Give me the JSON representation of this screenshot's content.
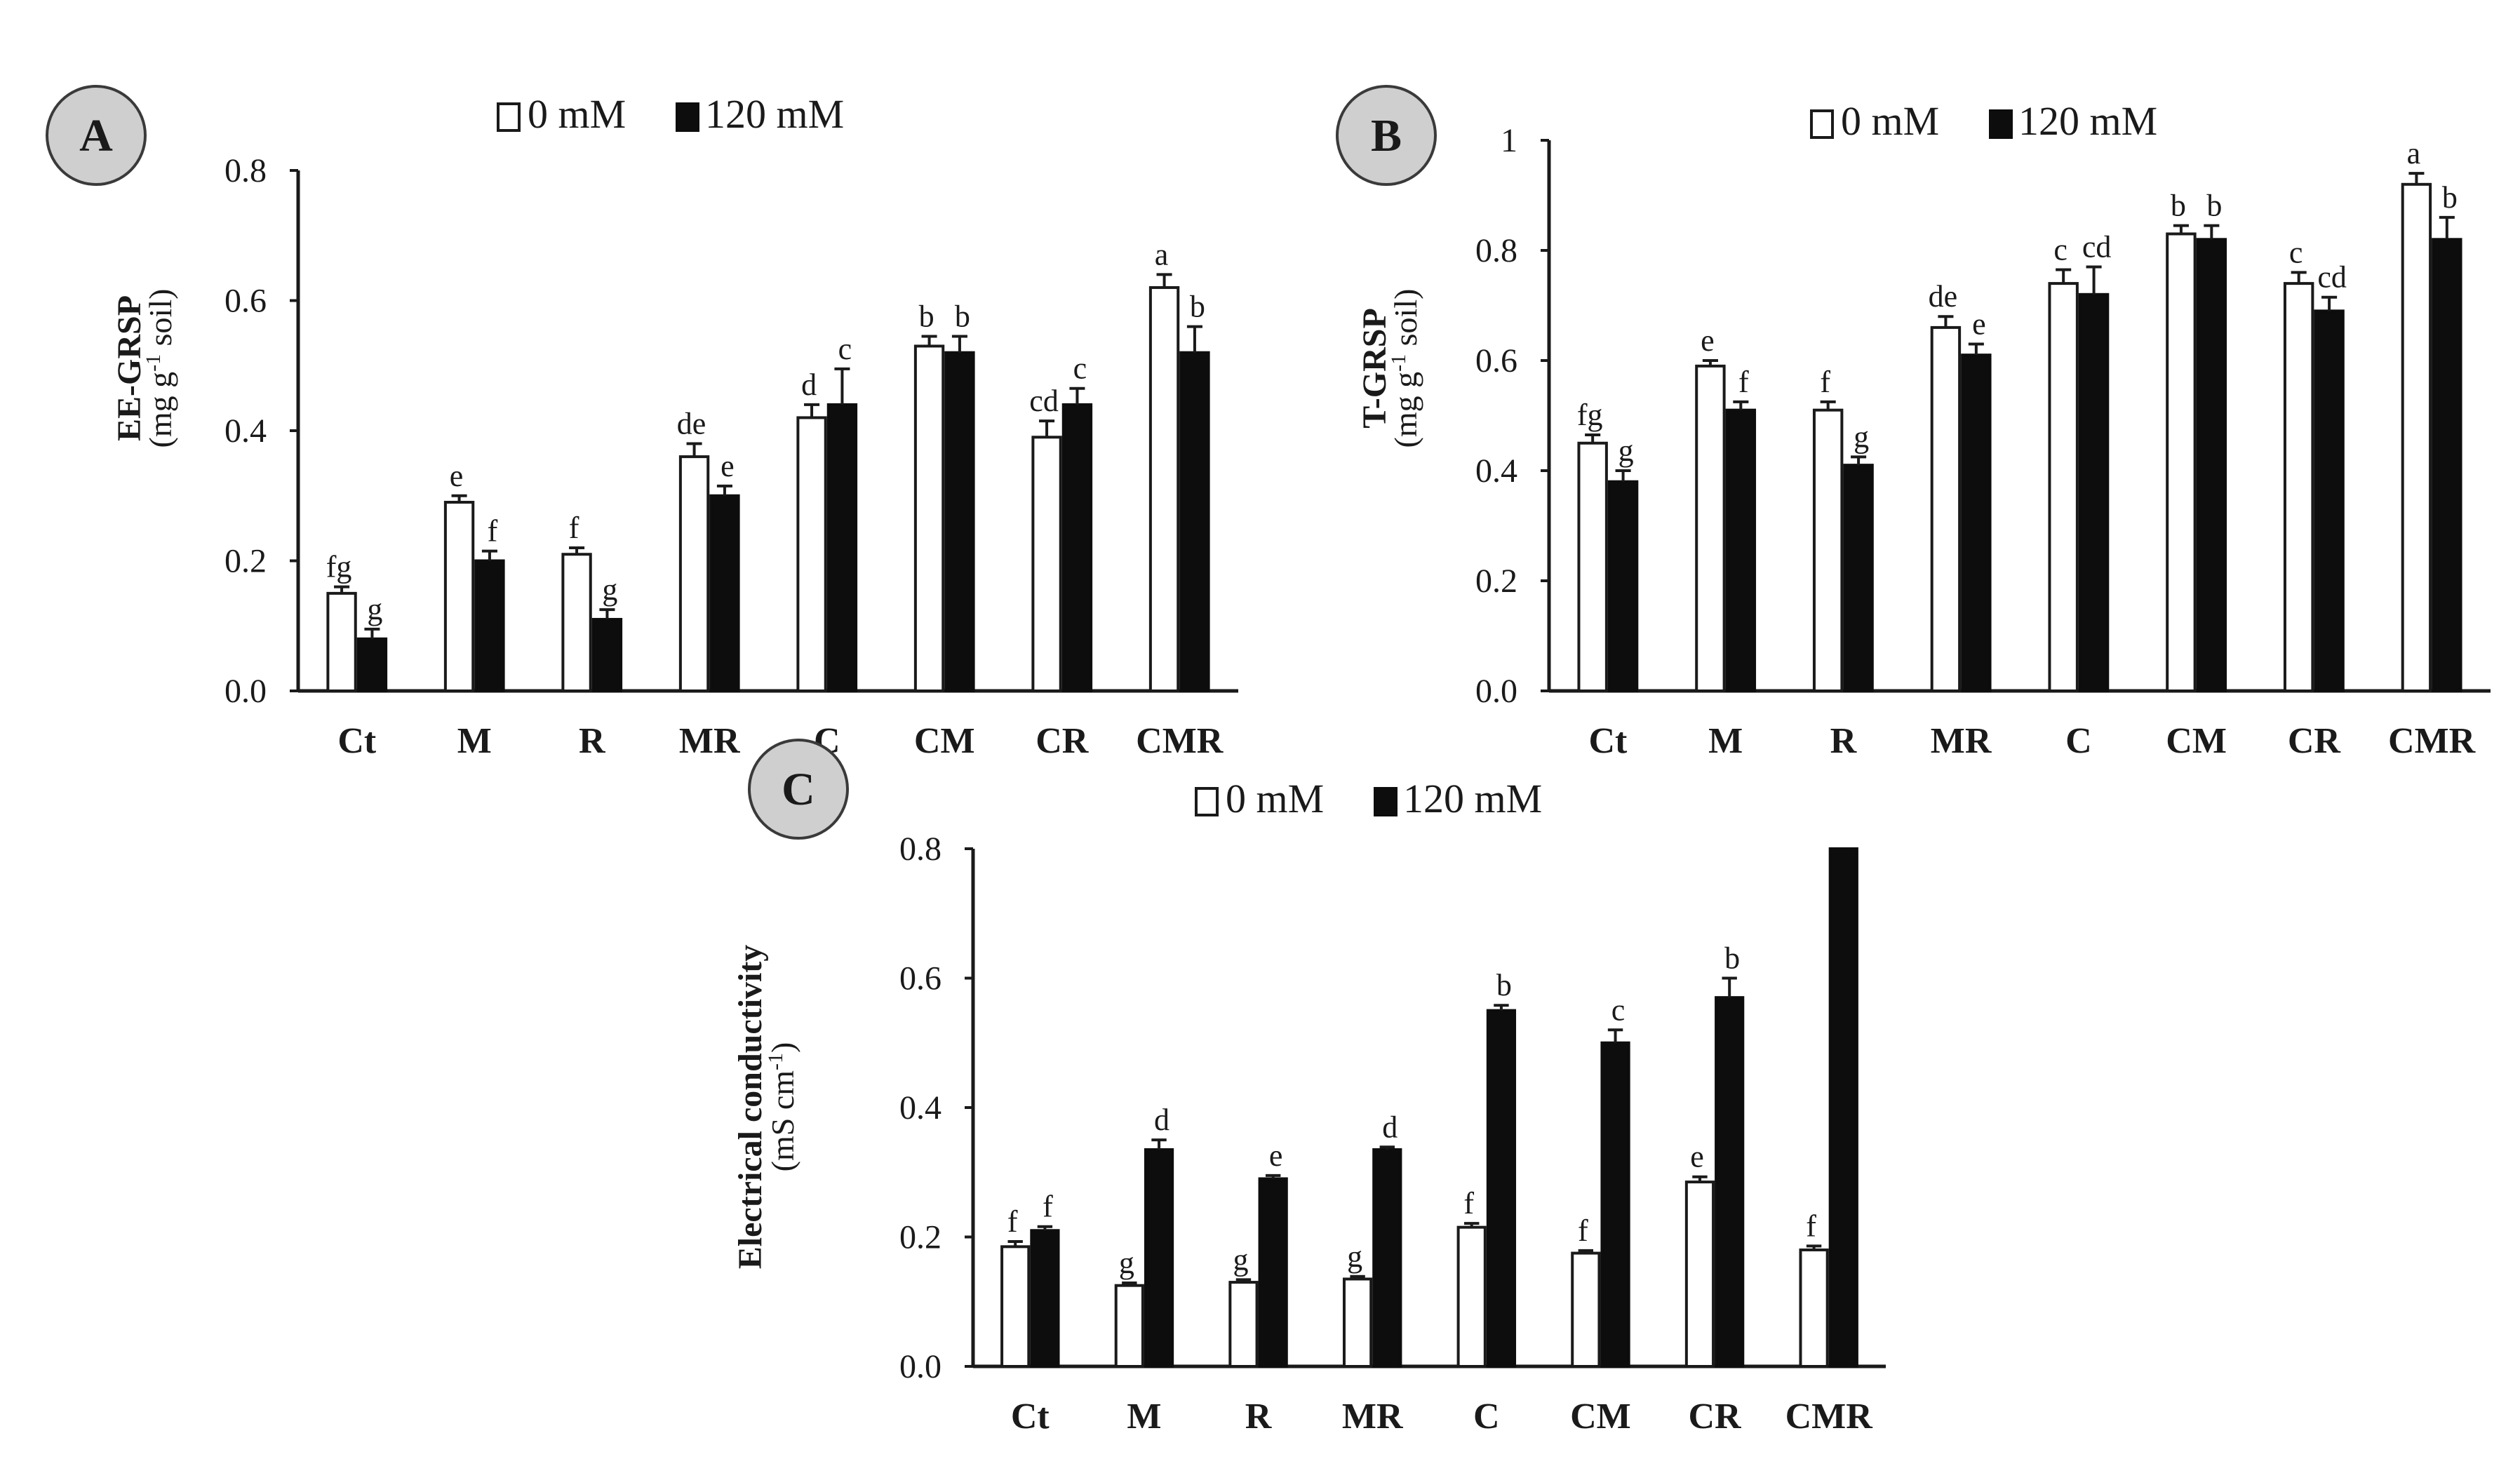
{
  "legend": {
    "series0": "0 mM",
    "series1": "120 mM"
  },
  "colors": {
    "series0_fill": "#ffffff",
    "series1_fill": "#0d0d0d",
    "badge": "#cfcfcf"
  },
  "chart_data": [
    {
      "id": "A",
      "type": "bar",
      "panel_label": "A",
      "ylabel_main": "EE-GRSP",
      "ylabel_unit": "(mg g-1 soil)",
      "ylabel_unit_parts": [
        "(mg g",
        "-1",
        " soil)"
      ],
      "ylim": [
        0,
        0.8
      ],
      "yticks": [
        "0.0",
        "0.2",
        "0.4",
        "0.6",
        "0.8"
      ],
      "categories": [
        "Ct",
        "M",
        "R",
        "MR",
        "C",
        "CM",
        "CR",
        "CMR"
      ],
      "series": [
        {
          "name": "0 mM",
          "values": [
            0.15,
            0.29,
            0.21,
            0.36,
            0.42,
            0.53,
            0.39,
            0.62
          ],
          "errors": [
            0.01,
            0.01,
            0.01,
            0.02,
            0.02,
            0.015,
            0.025,
            0.02
          ],
          "letters": [
            "fg",
            "e",
            "f",
            "de",
            "d",
            "b",
            "cd",
            "a"
          ]
        },
        {
          "name": "120 mM",
          "values": [
            0.08,
            0.2,
            0.11,
            0.3,
            0.44,
            0.52,
            0.44,
            0.52
          ],
          "errors": [
            0.015,
            0.015,
            0.015,
            0.015,
            0.055,
            0.025,
            0.025,
            0.04
          ],
          "letters": [
            "g",
            "f",
            "g",
            "e",
            "c",
            "b",
            "c",
            "b"
          ]
        }
      ]
    },
    {
      "id": "B",
      "type": "bar",
      "panel_label": "B",
      "ylabel_main": "T-GRSP",
      "ylabel_unit": "(mg g-1 soil)",
      "ylabel_unit_parts": [
        "(mg g",
        "-1",
        " soil)"
      ],
      "ylim": [
        0,
        1.0
      ],
      "yticks": [
        "0.0",
        "0.2",
        "0.4",
        "0.6",
        "0.8",
        "1"
      ],
      "categories": [
        "Ct",
        "M",
        "R",
        "MR",
        "C",
        "CM",
        "CR",
        "CMR"
      ],
      "series": [
        {
          "name": "0 mM",
          "values": [
            0.45,
            0.59,
            0.51,
            0.66,
            0.74,
            0.83,
            0.74,
            0.92
          ],
          "errors": [
            0.015,
            0.01,
            0.015,
            0.02,
            0.025,
            0.015,
            0.02,
            0.02
          ],
          "letters": [
            "fg",
            "e",
            "f",
            "de",
            "c",
            "b",
            "c",
            "a"
          ]
        },
        {
          "name": "120 mM",
          "values": [
            0.38,
            0.51,
            0.41,
            0.61,
            0.72,
            0.82,
            0.69,
            0.82
          ],
          "errors": [
            0.02,
            0.015,
            0.015,
            0.02,
            0.05,
            0.025,
            0.025,
            0.04
          ],
          "letters": [
            "g",
            "f",
            "g",
            "e",
            "cd",
            "b",
            "cd",
            "b"
          ]
        }
      ]
    },
    {
      "id": "C",
      "type": "bar",
      "panel_label": "C",
      "ylabel_main": "Electrical conductivity",
      "ylabel_unit": "(mS cm-1)",
      "ylabel_unit_parts": [
        "(mS cm",
        "-1",
        ")"
      ],
      "ylim": [
        0,
        0.8
      ],
      "yticks": [
        "0.0",
        "0.2",
        "0.4",
        "0.6",
        "0.8"
      ],
      "categories": [
        "Ct",
        "M",
        "R",
        "MR",
        "C",
        "CM",
        "CR",
        "CMR"
      ],
      "series": [
        {
          "name": "0 mM",
          "values": [
            0.185,
            0.125,
            0.13,
            0.135,
            0.215,
            0.175,
            0.285,
            0.18
          ],
          "errors": [
            0.008,
            0.004,
            0.004,
            0.004,
            0.006,
            0.004,
            0.008,
            0.006
          ],
          "letters": [
            "f",
            "g",
            "g",
            "g",
            "f",
            "f",
            "e",
            "f"
          ]
        },
        {
          "name": "120 mM",
          "values": [
            0.21,
            0.335,
            0.29,
            0.335,
            0.55,
            0.5,
            0.57,
            0.8
          ],
          "errors": [
            0.006,
            0.015,
            0.005,
            0.004,
            0.008,
            0.02,
            0.03,
            0.0
          ],
          "letters": [
            "f",
            "d",
            "e",
            "d",
            "b",
            "c",
            "b",
            ""
          ]
        }
      ]
    }
  ]
}
